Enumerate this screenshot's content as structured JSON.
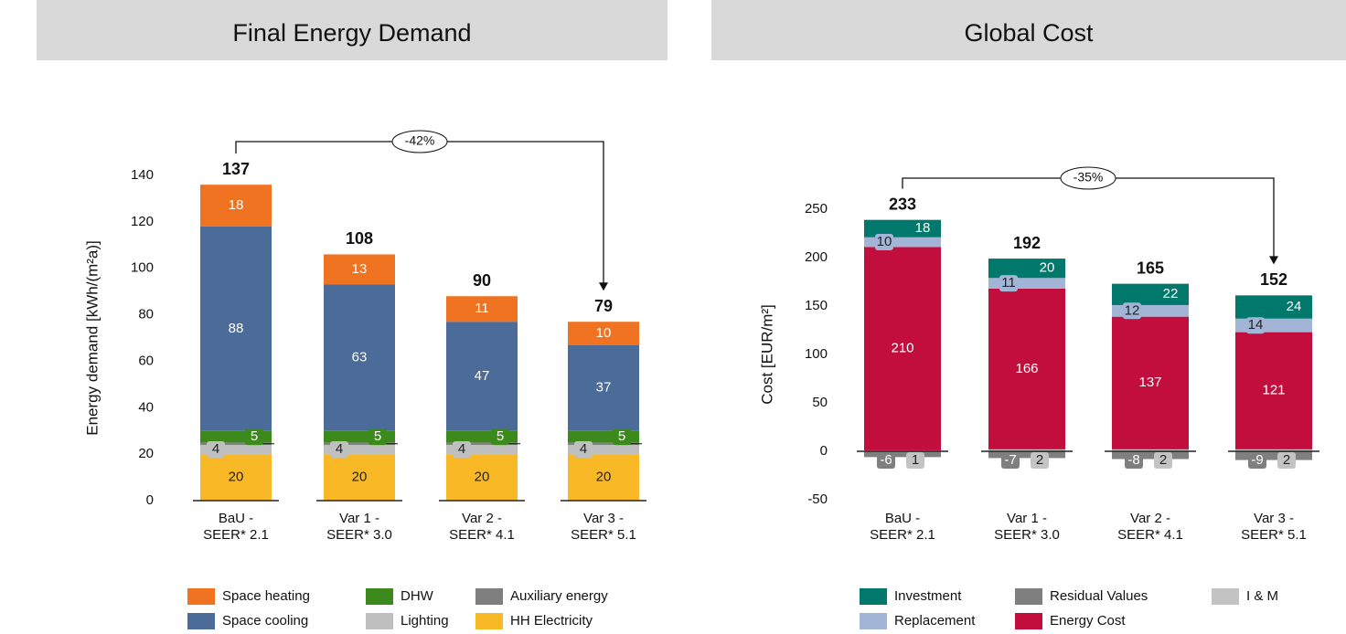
{
  "chart_data": [
    {
      "type": "stacked_bar",
      "title": "Final Energy Demand",
      "y_label": "Energy demand [kWh/(m²a)]",
      "categories": [
        [
          "BaU -",
          "SEER* 2.1"
        ],
        [
          "Var 1 -",
          "SEER* 3.0"
        ],
        [
          "Var 2 -",
          "SEER* 4.1"
        ],
        [
          "Var 3 -",
          "SEER* 5.1"
        ]
      ],
      "series": [
        {
          "name": "HH Electricity",
          "color": "#f9b927",
          "values": [
            20,
            20,
            20,
            20
          ]
        },
        {
          "name": "Lighting",
          "color": "#bfbfbf",
          "values": [
            4,
            4,
            4,
            4
          ]
        },
        {
          "name": "Auxiliary energy",
          "color": "#7f7f7f",
          "values": [
            1,
            1,
            1,
            1
          ]
        },
        {
          "name": "DHW",
          "color": "#3b8a1b",
          "values": [
            5,
            5,
            5,
            5
          ]
        },
        {
          "name": "Space cooling",
          "color": "#4b6b99",
          "values": [
            88,
            63,
            47,
            37
          ]
        },
        {
          "name": "Space heating",
          "color": "#f07322",
          "values": [
            18,
            13,
            11,
            10
          ]
        }
      ],
      "totals": [
        137,
        108,
        90,
        79
      ],
      "annotation": "-42%",
      "ylim": [
        0,
        140
      ],
      "yticks": [
        0,
        20,
        40,
        60,
        80,
        100,
        120,
        140
      ]
    },
    {
      "type": "stacked_bar",
      "title": "Global Cost",
      "y_label": "Cost [EUR/m²]",
      "categories": [
        [
          "BaU -",
          "SEER* 2.1"
        ],
        [
          "Var 1 -",
          "SEER* 3.0"
        ],
        [
          "Var 2 -",
          "SEER* 4.1"
        ],
        [
          "Var 3 -",
          "SEER* 5.1"
        ]
      ],
      "series": [
        {
          "name": "I & M",
          "color": "#c3c3c3",
          "values": [
            1,
            2,
            2,
            2
          ]
        },
        {
          "name": "Energy Cost",
          "color": "#c10e3d",
          "values": [
            210,
            166,
            137,
            121
          ]
        },
        {
          "name": "Replacement",
          "color": "#a3b5d6",
          "values": [
            10,
            11,
            12,
            14
          ]
        },
        {
          "name": "Investment",
          "color": "#00786b",
          "values": [
            18,
            20,
            22,
            24
          ]
        },
        {
          "name": "Residual Values",
          "color": "#7f7f7f",
          "values": [
            -6,
            -7,
            -8,
            -9
          ]
        }
      ],
      "totals": [
        233,
        192,
        165,
        152
      ],
      "annotation": "-35%",
      "ylim": [
        -50,
        250
      ],
      "yticks": [
        -50,
        0,
        50,
        100,
        150,
        200,
        250
      ]
    }
  ]
}
